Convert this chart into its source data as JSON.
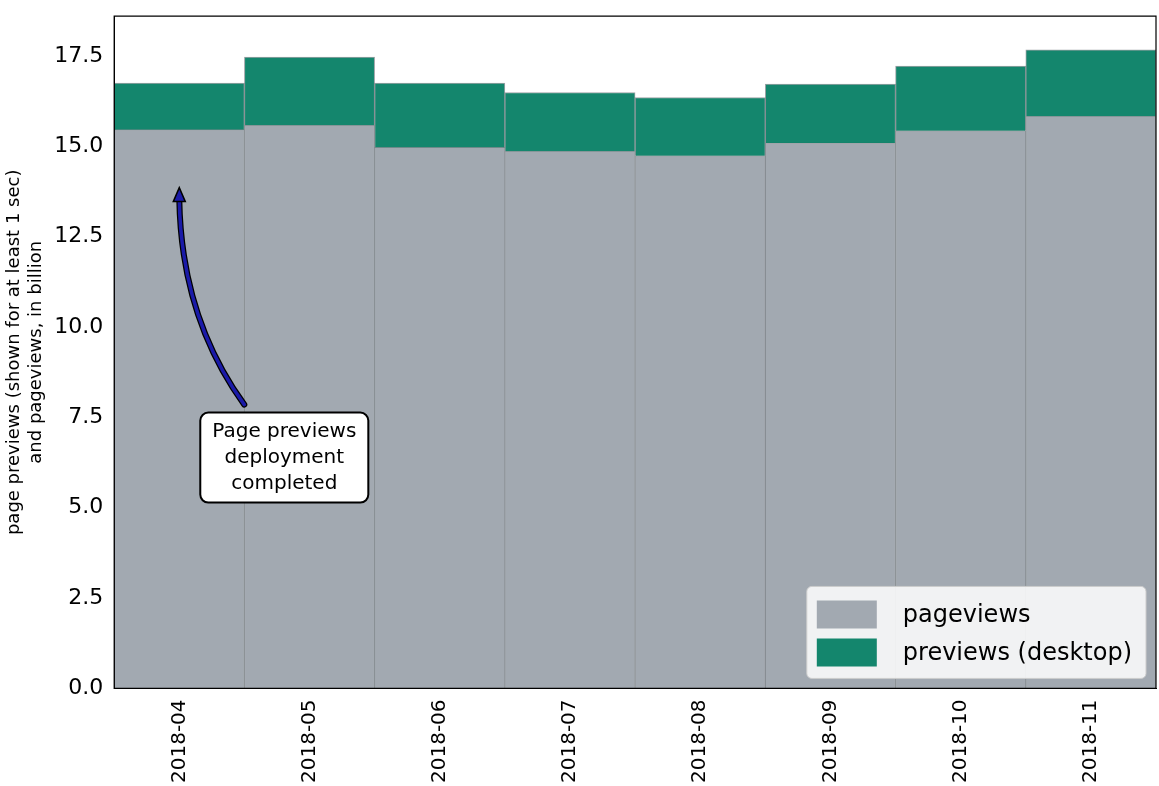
{
  "chart_data": {
    "type": "bar",
    "stacked": true,
    "ylabel": "page previews (shown for at least 1 sec)\nand pageviews, in billion",
    "categories": [
      "2018-04",
      "2018-05",
      "2018-06",
      "2018-07",
      "2018-08",
      "2018-09",
      "2018-10",
      "2018-11"
    ],
    "series": [
      {
        "name": "pageviews",
        "color": "#a2a9b1",
        "values": [
          15.46,
          15.58,
          14.97,
          14.86,
          14.74,
          15.09,
          15.43,
          15.83
        ]
      },
      {
        "name": "previews (desktop)",
        "color": "#14866d",
        "values": [
          1.29,
          1.89,
          1.78,
          1.63,
          1.61,
          1.63,
          1.79,
          1.84
        ]
      }
    ],
    "ylim": [
      0,
      18.6
    ],
    "yticks": [
      {
        "value": 0,
        "label": "0.0"
      },
      {
        "value": 2.5,
        "label": "2.5"
      },
      {
        "value": 5,
        "label": "5.0"
      },
      {
        "value": 7.5,
        "label": "7.5"
      },
      {
        "value": 10,
        "label": "10.0"
      },
      {
        "value": 12.5,
        "label": "12.5"
      },
      {
        "value": 15,
        "label": "15.0"
      },
      {
        "value": 17.5,
        "label": "17.5"
      }
    ],
    "legend": "bottom right",
    "annotations": [
      "Page previews\ndeployment\ncompleted"
    ]
  }
}
